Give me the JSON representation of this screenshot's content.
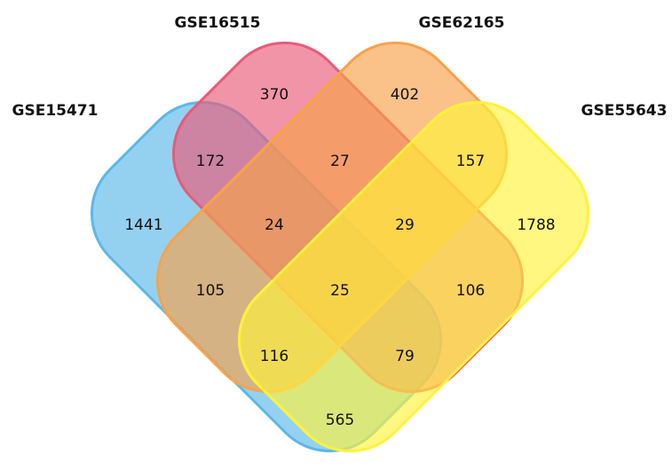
{
  "sets": [
    {
      "name": "GSE15471",
      "color": "#5bb8ea"
    },
    {
      "name": "GSE16515",
      "color": "#ea5a78"
    },
    {
      "name": "GSE62165",
      "color": "#f8a24a"
    },
    {
      "name": "GSE55643",
      "color": "#fff23a"
    }
  ],
  "regions": [
    370,
    402,
    172,
    27,
    157,
    1441,
    24,
    29,
    1788,
    105,
    25,
    106,
    116,
    79,
    565
  ]
}
